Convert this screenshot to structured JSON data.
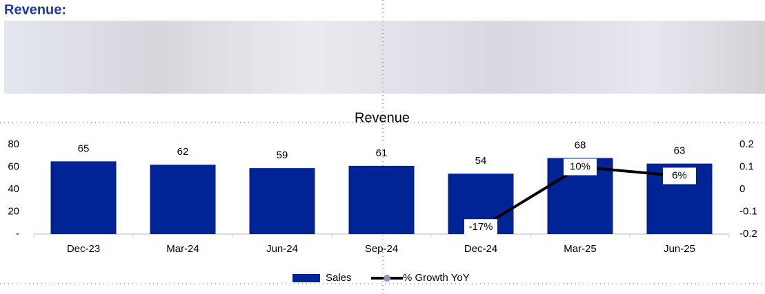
{
  "header": {
    "title": "Revenue:"
  },
  "chart_data": {
    "type": "bar",
    "title": "Revenue",
    "categories": [
      "Dec-23",
      "Mar-24",
      "Jun-24",
      "Sep-24",
      "Dec-24",
      "Mar-25",
      "Jun-25"
    ],
    "series": [
      {
        "name": "Sales",
        "type": "bar",
        "color": "#002395",
        "values": [
          65,
          62,
          59,
          61,
          54,
          68,
          63
        ]
      },
      {
        "name": "% Growth YoY",
        "type": "line",
        "axis": "y2",
        "color": "#000000",
        "values": [
          null,
          null,
          null,
          null,
          -0.17,
          0.1,
          0.06
        ],
        "value_labels": [
          null,
          null,
          null,
          null,
          "-17%",
          "10%",
          "6%"
        ]
      }
    ],
    "ylim": [
      0,
      80
    ],
    "yticks": [
      {
        "value": 0,
        "label": "-"
      },
      20,
      40,
      60,
      80
    ],
    "y2lim": [
      -0.2,
      0.2
    ],
    "y2ticks": [
      -0.2,
      -0.1,
      0,
      0.1,
      0.2
    ],
    "legend": "bottom"
  }
}
